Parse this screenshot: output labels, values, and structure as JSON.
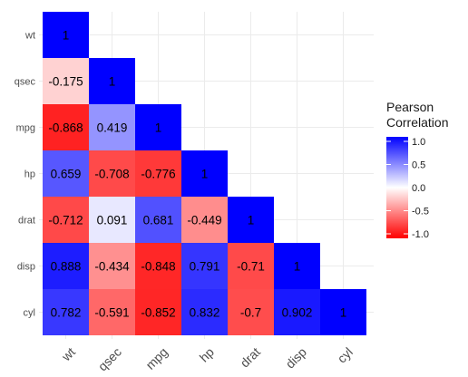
{
  "chart_data": {
    "type": "heatmap",
    "title": "",
    "xlabel": "",
    "ylabel": "",
    "x_categories": [
      "wt",
      "qsec",
      "mpg",
      "hp",
      "drat",
      "disp",
      "cyl"
    ],
    "y_categories": [
      "wt",
      "qsec",
      "mpg",
      "hp",
      "drat",
      "disp",
      "cyl"
    ],
    "cells": [
      {
        "x": "wt",
        "y": "wt",
        "value": 1,
        "label": "1"
      },
      {
        "x": "wt",
        "y": "qsec",
        "value": -0.175,
        "label": "-0.175"
      },
      {
        "x": "qsec",
        "y": "qsec",
        "value": 1,
        "label": "1"
      },
      {
        "x": "wt",
        "y": "mpg",
        "value": -0.868,
        "label": "-0.868"
      },
      {
        "x": "qsec",
        "y": "mpg",
        "value": 0.419,
        "label": "0.419"
      },
      {
        "x": "mpg",
        "y": "mpg",
        "value": 1,
        "label": "1"
      },
      {
        "x": "wt",
        "y": "hp",
        "value": 0.659,
        "label": "0.659"
      },
      {
        "x": "qsec",
        "y": "hp",
        "value": -0.708,
        "label": "-0.708"
      },
      {
        "x": "mpg",
        "y": "hp",
        "value": -0.776,
        "label": "-0.776"
      },
      {
        "x": "hp",
        "y": "hp",
        "value": 1,
        "label": "1"
      },
      {
        "x": "wt",
        "y": "drat",
        "value": -0.712,
        "label": "-0.712"
      },
      {
        "x": "qsec",
        "y": "drat",
        "value": 0.091,
        "label": "0.091"
      },
      {
        "x": "mpg",
        "y": "drat",
        "value": 0.681,
        "label": "0.681"
      },
      {
        "x": "hp",
        "y": "drat",
        "value": -0.449,
        "label": "-0.449"
      },
      {
        "x": "drat",
        "y": "drat",
        "value": 1,
        "label": "1"
      },
      {
        "x": "wt",
        "y": "disp",
        "value": 0.888,
        "label": "0.888"
      },
      {
        "x": "qsec",
        "y": "disp",
        "value": -0.434,
        "label": "-0.434"
      },
      {
        "x": "mpg",
        "y": "disp",
        "value": -0.848,
        "label": "-0.848"
      },
      {
        "x": "hp",
        "y": "disp",
        "value": 0.791,
        "label": "0.791"
      },
      {
        "x": "drat",
        "y": "disp",
        "value": -0.71,
        "label": "-0.71"
      },
      {
        "x": "disp",
        "y": "disp",
        "value": 1,
        "label": "1"
      },
      {
        "x": "wt",
        "y": "cyl",
        "value": 0.782,
        "label": "0.782"
      },
      {
        "x": "qsec",
        "y": "cyl",
        "value": -0.591,
        "label": "-0.591"
      },
      {
        "x": "mpg",
        "y": "cyl",
        "value": -0.852,
        "label": "-0.852"
      },
      {
        "x": "hp",
        "y": "cyl",
        "value": 0.832,
        "label": "0.832"
      },
      {
        "x": "drat",
        "y": "cyl",
        "value": -0.7,
        "label": "-0.7"
      },
      {
        "x": "disp",
        "y": "cyl",
        "value": 0.902,
        "label": "0.902"
      },
      {
        "x": "cyl",
        "y": "cyl",
        "value": 1,
        "label": "1"
      }
    ],
    "legend": {
      "title_lines": [
        "Pearson",
        "Correlation"
      ],
      "ticks": [
        {
          "value": 1.0,
          "label": "1.0"
        },
        {
          "value": 0.5,
          "label": "0.5"
        },
        {
          "value": 0.0,
          "label": "0.0"
        },
        {
          "value": -0.5,
          "label": "-0.5"
        },
        {
          "value": -1.0,
          "label": "-1.0"
        }
      ],
      "limits": [
        -1,
        1
      ],
      "placement": "right"
    },
    "color_scale": {
      "low": "#ff0000",
      "mid": "#ffffff",
      "high": "#0000ff"
    },
    "grid": true,
    "x_tick_rotation_deg": 45
  }
}
